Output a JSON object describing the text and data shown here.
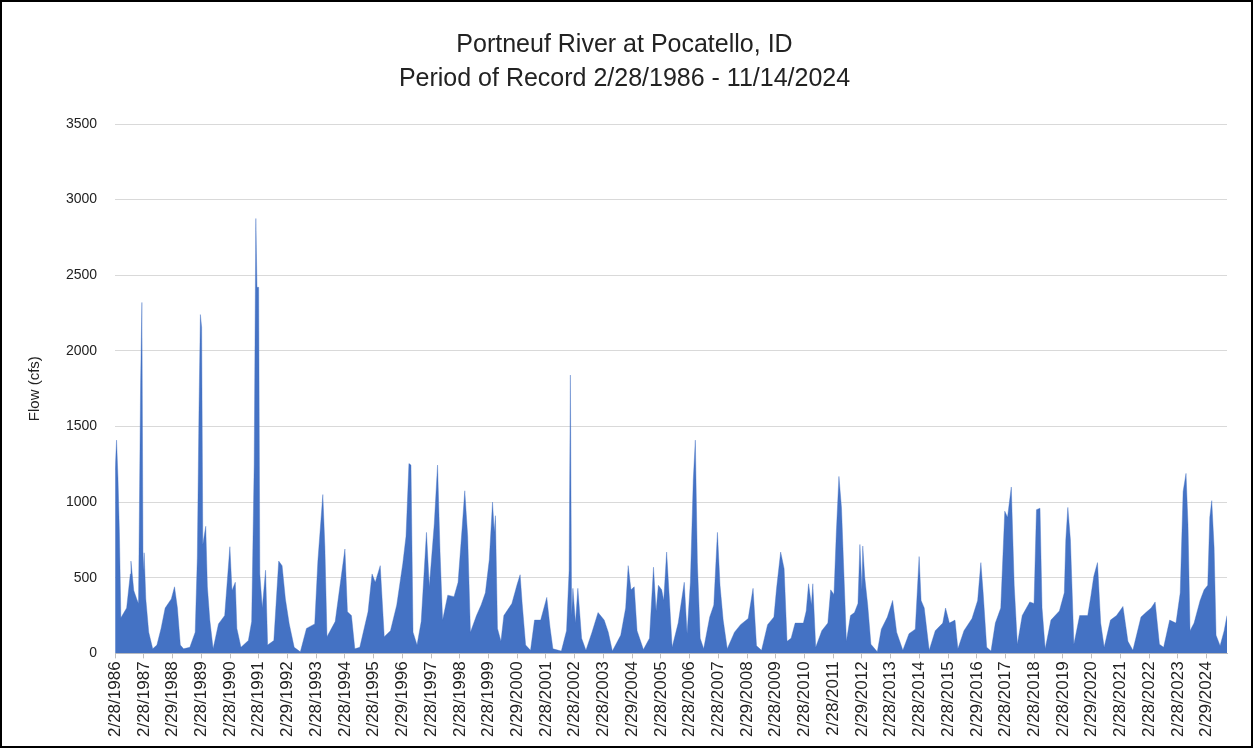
{
  "chart_data": {
    "type": "area",
    "title": "Portneuf River at Pocatello, ID",
    "subtitle": "Period of Record 2/28/1986 - 11/14/2024",
    "ylabel": "Flow (cfs)",
    "color": "#4472c4",
    "grid": "y",
    "x": [
      "1986-02-28",
      "1986-03-18",
      "1986-04-05",
      "1986-04-23",
      "1986-05-12",
      "1986-07-24",
      "1986-09-09",
      "1986-09-17",
      "1986-10-23",
      "1986-11-29",
      "1986-12-22",
      "1987-01-18",
      "1987-02-03",
      "1987-02-18",
      "1987-03-04",
      "1987-03-25",
      "1987-05-01",
      "1987-06-21",
      "1987-08-13",
      "1987-10-05",
      "1987-11-26",
      "1988-02-12",
      "1988-03-24",
      "1988-04-30",
      "1988-06-06",
      "1988-07-17",
      "1988-10-05",
      "1988-12-12",
      "1989-01-08",
      "1989-01-29",
      "1989-02-16",
      "1989-03-04",
      "1989-03-19",
      "1989-04-25",
      "1989-05-16",
      "1989-06-16",
      "1989-07-28",
      "1989-10-04",
      "1989-12-22",
      "1990-02-26",
      "1990-03-25",
      "1990-05-06",
      "1990-05-26",
      "1990-07-17",
      "1990-10-19",
      "1990-11-30",
      "1991-01-01",
      "1991-01-22",
      "1991-02-06",
      "1991-02-27",
      "1991-03-14",
      "1991-04-14",
      "1991-05-26",
      "1991-06-21",
      "1991-09-08",
      "1991-11-09",
      "1991-12-22",
      "1992-02-02",
      "1992-03-22",
      "1992-05-24",
      "1992-08-10",
      "1992-10-27",
      "1993-02-09",
      "1993-03-21",
      "1993-05-23",
      "1993-06-18",
      "1993-07-15",
      "1993-10-27",
      "1994-02-28",
      "1994-04-01",
      "1994-05-22",
      "1994-07-04",
      "1994-09-05",
      "1994-12-19",
      "1995-02-08",
      "1995-03-21",
      "1995-05-23",
      "1995-07-13",
      "1995-09-30",
      "1995-12-19",
      "1996-03-05",
      "1996-04-15",
      "1996-05-22",
      "1996-06-17",
      "1996-07-13",
      "1996-09-02",
      "1996-10-25",
      "1996-12-31",
      "1997-02-05",
      "1997-04-09",
      "1997-05-21",
      "1997-06-22",
      "1997-07-24",
      "1997-09-28",
      "1997-12-16",
      "1998-02-06",
      "1998-03-31",
      "1998-05-02",
      "1998-06-08",
      "1998-07-13",
      "1998-09-28",
      "1998-11-26",
      "1999-01-19",
      "1999-03-10",
      "1999-04-20",
      "1999-05-12",
      "1999-05-27",
      "1999-06-22",
      "1999-08-05",
      "1999-09-11",
      "1999-12-22",
      "2000-02-29",
      "2000-04-05",
      "2000-05-01",
      "2000-06-14",
      "2000-08-15",
      "2000-10-05",
      "2000-12-22",
      "2001-03-10",
      "2001-04-21",
      "2001-05-27",
      "2001-09-11",
      "2001-11-16",
      "2001-12-19",
      "2002-01-04",
      "2002-01-20",
      "2002-02-05",
      "2002-03-10",
      "2002-04-09",
      "2002-05-27",
      "2002-07-21",
      "2002-10-06",
      "2002-12-22",
      "2003-03-10",
      "2003-05-01",
      "2003-06-22",
      "2003-10-06",
      "2003-12-08",
      "2004-01-09",
      "2004-02-14",
      "2004-03-26",
      "2004-05-01",
      "2004-07-21",
      "2004-10-06",
      "2004-11-26",
      "2004-12-29",
      "2005-01-27",
      "2005-03-10",
      "2005-04-05",
      "2005-05-12",
      "2005-06-14",
      "2005-07-21",
      "2005-10-06",
      "2005-12-22",
      "2006-01-27",
      "2006-03-10",
      "2006-04-16",
      "2006-05-12",
      "2006-06-07",
      "2006-07-13",
      "2006-08-26",
      "2006-11-11",
      "2007-01-02",
      "2007-02-17",
      "2007-03-22",
      "2007-05-01",
      "2007-06-22",
      "2007-09-22",
      "2007-12-08",
      "2008-03-14",
      "2008-05-15",
      "2008-06-28",
      "2008-08-31",
      "2008-11-16",
      "2009-02-04",
      "2009-03-10",
      "2009-05-01",
      "2009-06-14",
      "2009-07-21",
      "2009-09-11",
      "2009-11-01",
      "2010-02-14",
      "2010-03-22",
      "2010-04-21",
      "2010-05-27",
      "2010-06-14",
      "2010-07-21",
      "2010-10-06",
      "2010-12-22",
      "2011-01-27",
      "2011-03-10",
      "2011-04-09",
      "2011-05-12",
      "2011-06-14",
      "2011-07-09",
      "2011-08-15",
      "2011-10-06",
      "2011-11-26",
      "2012-01-09",
      "2012-02-03",
      "2012-02-29",
      "2012-03-10",
      "2012-04-05",
      "2012-05-12",
      "2012-06-22",
      "2012-09-11",
      "2012-11-01",
      "2013-01-17",
      "2013-03-25",
      "2013-05-15",
      "2013-08-02",
      "2013-10-19",
      "2014-01-07",
      "2014-02-25",
      "2014-03-22",
      "2014-05-01",
      "2014-07-03",
      "2014-09-18",
      "2014-12-22",
      "2015-01-27",
      "2015-03-17",
      "2015-05-27",
      "2015-07-03",
      "2015-09-18",
      "2015-12-29",
      "2016-03-10",
      "2016-04-20",
      "2016-05-19",
      "2016-07-03",
      "2016-08-27",
      "2016-10-21",
      "2016-12-29",
      "2017-02-18",
      "2017-03-25",
      "2017-05-12",
      "2017-06-18",
      "2017-07-28",
      "2017-09-28",
      "2018-01-02",
      "2018-02-25",
      "2018-03-28",
      "2018-05-12",
      "2018-06-07",
      "2018-07-17",
      "2018-09-28",
      "2019-01-13",
      "2019-03-17",
      "2019-04-05",
      "2019-05-01",
      "2019-06-03",
      "2019-07-17",
      "2019-09-28",
      "2020-01-09",
      "2020-02-18",
      "2020-03-26",
      "2020-05-12",
      "2020-06-22",
      "2020-08-05",
      "2020-10-24",
      "2021-01-09",
      "2021-04-01",
      "2021-06-03",
      "2021-08-05",
      "2021-11-16",
      "2022-01-17",
      "2022-03-25",
      "2022-05-15",
      "2022-07-09",
      "2022-08-31",
      "2022-11-16",
      "2023-02-04",
      "2023-03-30",
      "2023-05-06",
      "2023-06-12",
      "2023-07-07",
      "2023-08-02",
      "2023-09-22",
      "2023-12-08",
      "2024-01-28",
      "2024-03-14",
      "2024-04-09",
      "2024-05-04",
      "2024-06-03",
      "2024-06-28",
      "2024-08-18",
      "2024-10-09",
      "2024-11-14"
    ],
    "values": [
      1215,
      1410,
      1160,
      800,
      235,
      300,
      525,
      610,
      415,
      360,
      330,
      1795,
      2320,
      550,
      665,
      360,
      140,
      30,
      55,
      165,
      300,
      360,
      440,
      300,
      55,
      30,
      40,
      140,
      635,
      1600,
      2240,
      2155,
      720,
      840,
      440,
      220,
      30,
      195,
      250,
      705,
      415,
      470,
      165,
      40,
      85,
      210,
      1245,
      2875,
      2420,
      2420,
      525,
      300,
      550,
      55,
      85,
      610,
      580,
      360,
      195,
      40,
      10,
      165,
      195,
      610,
      1050,
      705,
      110,
      210,
      690,
      275,
      250,
      30,
      40,
      275,
      525,
      470,
      580,
      110,
      150,
      320,
      595,
      775,
      1255,
      1245,
      140,
      55,
      210,
      800,
      440,
      855,
      1245,
      665,
      220,
      385,
      375,
      470,
      840,
      1075,
      775,
      140,
      250,
      320,
      400,
      620,
      1000,
      800,
      910,
      165,
      80,
      250,
      330,
      460,
      520,
      330,
      55,
      20,
      220,
      220,
      370,
      170,
      30,
      15,
      150,
      550,
      1840,
      250,
      430,
      200,
      430,
      100,
      20,
      140,
      270,
      220,
      140,
      15,
      120,
      300,
      580,
      420,
      440,
      150,
      25,
      100,
      570,
      280,
      450,
      420,
      350,
      670,
      380,
      40,
      200,
      470,
      130,
      470,
      1150,
      1410,
      600,
      100,
      30,
      240,
      320,
      800,
      450,
      220,
      30,
      140,
      190,
      230,
      430,
      50,
      20,
      190,
      240,
      430,
      670,
      560,
      80,
      100,
      200,
      200,
      280,
      460,
      320,
      460,
      40,
      150,
      200,
      420,
      390,
      800,
      1170,
      960,
      600,
      80,
      250,
      270,
      330,
      720,
      420,
      710,
      500,
      320,
      60,
      10,
      160,
      240,
      350,
      140,
      20,
      130,
      160,
      640,
      350,
      300,
      20,
      150,
      200,
      300,
      200,
      220,
      30,
      150,
      230,
      350,
      600,
      400,
      40,
      15,
      200,
      300,
      940,
      900,
      1100,
      450,
      60,
      250,
      340,
      330,
      950,
      960,
      300,
      30,
      220,
      280,
      400,
      750,
      965,
      750,
      60,
      250,
      250,
      380,
      510,
      600,
      200,
      40,
      220,
      250,
      310,
      80,
      20,
      240,
      270,
      300,
      340,
      60,
      40,
      220,
      200,
      400,
      1070,
      1190,
      850,
      150,
      200,
      350,
      420,
      450,
      900,
      1010,
      700,
      120,
      50,
      150,
      250
    ],
    "xlim": [
      "1986-02-28",
      "2024-11-14"
    ],
    "ylim": [
      0,
      3500
    ],
    "yticks": [
      0,
      500,
      1000,
      1500,
      2000,
      2500,
      3000,
      3500
    ],
    "xticks": [
      {
        "value": "1986-02-28",
        "label": "2/28/1986"
      },
      {
        "value": "1987-02-28",
        "label": "2/28/1987"
      },
      {
        "value": "1988-02-29",
        "label": "2/29/1988"
      },
      {
        "value": "1989-02-28",
        "label": "2/28/1989"
      },
      {
        "value": "1990-02-28",
        "label": "2/28/1990"
      },
      {
        "value": "1991-02-28",
        "label": "2/28/1991"
      },
      {
        "value": "1992-02-29",
        "label": "2/29/1992"
      },
      {
        "value": "1993-02-28",
        "label": "2/28/1993"
      },
      {
        "value": "1994-02-28",
        "label": "2/28/1994"
      },
      {
        "value": "1995-02-28",
        "label": "2/28/1995"
      },
      {
        "value": "1996-02-29",
        "label": "2/29/1996"
      },
      {
        "value": "1997-02-28",
        "label": "2/28/1997"
      },
      {
        "value": "1998-02-28",
        "label": "2/28/1998"
      },
      {
        "value": "1999-02-28",
        "label": "2/28/1999"
      },
      {
        "value": "2000-02-29",
        "label": "2/29/2000"
      },
      {
        "value": "2001-02-28",
        "label": "2/28/2001"
      },
      {
        "value": "2002-02-28",
        "label": "2/28/2002"
      },
      {
        "value": "2003-02-28",
        "label": "2/28/2003"
      },
      {
        "value": "2004-02-29",
        "label": "2/29/2004"
      },
      {
        "value": "2005-02-28",
        "label": "2/28/2005"
      },
      {
        "value": "2006-02-28",
        "label": "2/28/2006"
      },
      {
        "value": "2007-02-28",
        "label": "2/28/2007"
      },
      {
        "value": "2008-02-29",
        "label": "2/29/2008"
      },
      {
        "value": "2009-02-28",
        "label": "2/28/2009"
      },
      {
        "value": "2010-02-28",
        "label": "2/28/2010"
      },
      {
        "value": "2011-02-28",
        "label": "2/28/2011"
      },
      {
        "value": "2012-02-29",
        "label": "2/29/2012"
      },
      {
        "value": "2013-02-28",
        "label": "2/28/2013"
      },
      {
        "value": "2014-02-28",
        "label": "2/28/2014"
      },
      {
        "value": "2015-02-28",
        "label": "2/28/2015"
      },
      {
        "value": "2016-02-29",
        "label": "2/29/2016"
      },
      {
        "value": "2017-02-28",
        "label": "2/28/2017"
      },
      {
        "value": "2018-02-28",
        "label": "2/28/2018"
      },
      {
        "value": "2019-02-28",
        "label": "2/28/2019"
      },
      {
        "value": "2020-02-29",
        "label": "2/29/2020"
      },
      {
        "value": "2021-02-28",
        "label": "2/28/2021"
      },
      {
        "value": "2022-02-28",
        "label": "2/28/2022"
      },
      {
        "value": "2023-02-28",
        "label": "2/28/2023"
      },
      {
        "value": "2024-02-29",
        "label": "2/29/2024"
      }
    ]
  }
}
